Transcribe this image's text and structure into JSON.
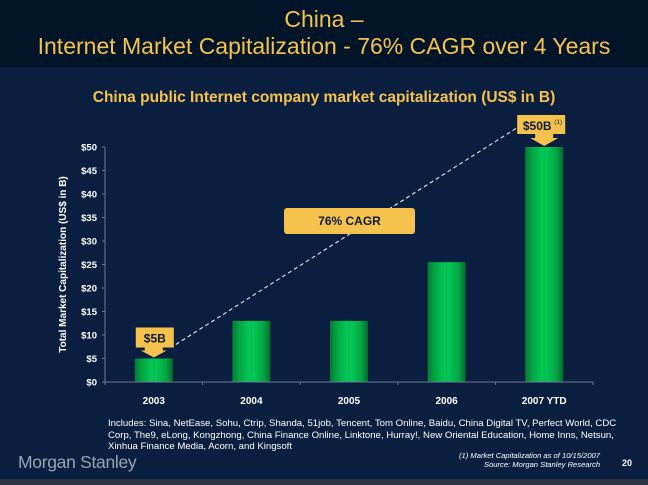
{
  "header": {
    "title_line1": "China –",
    "title_line2": "Internet Market Capitalization - 76% CAGR over 4 Years"
  },
  "colors": {
    "background": "#0a1f3f",
    "header_background": "#021428",
    "accent_yellow": "#f6c24e",
    "bar_green": "#00c050",
    "bar_green_dark": "#047a33",
    "axis": "#6b7a93"
  },
  "chart_data": {
    "type": "bar",
    "title": "China public Internet company market capitalization (US$ in B)",
    "xlabel": "",
    "ylabel": "Total Market Capitalization (US$ in B)",
    "categories": [
      "2003",
      "2004",
      "2005",
      "2006",
      "2007 YTD"
    ],
    "values": [
      5,
      13,
      13,
      25.5,
      50
    ],
    "ylim": [
      0,
      50
    ],
    "yticks": [
      0,
      5,
      10,
      15,
      20,
      25,
      30,
      35,
      40,
      45,
      50
    ],
    "ytick_labels": [
      "$0",
      "$5",
      "$10",
      "$15",
      "$20",
      "$25",
      "$30",
      "$35",
      "$40",
      "$45",
      "$50"
    ],
    "grid": false,
    "legend": "none",
    "annotations": [
      {
        "text": "$5B",
        "category": "2003",
        "value": 5,
        "style": "callout-arrow"
      },
      {
        "text": "$50B",
        "superscript": "(1)",
        "category": "2007 YTD",
        "value": 50,
        "style": "callout-arrow"
      },
      {
        "text": "76% CAGR",
        "style": "box"
      }
    ],
    "trend_line": {
      "from": "2003",
      "to": "2007 YTD",
      "style": "dashed"
    }
  },
  "includes_text": "Includes: Sina, NetEase, Sohu, Ctrip, Shanda, 51job, Tencent, Tom Online, Baidu, China Digital TV, Perfect World, CDC Corp, The9, eLong, Kongzhong, China Finance Online, Linktone, Hurray!, New Oriental Education, Home Inns, Netsun, Xinhua Finance Media, Acorn, and Kingsoft",
  "footer": {
    "logo": "Morgan Stanley",
    "footnote": "(1) Market Capitalization as of 10/15/2007",
    "source": "Source: Morgan Stanley Research",
    "page_number": "20"
  }
}
